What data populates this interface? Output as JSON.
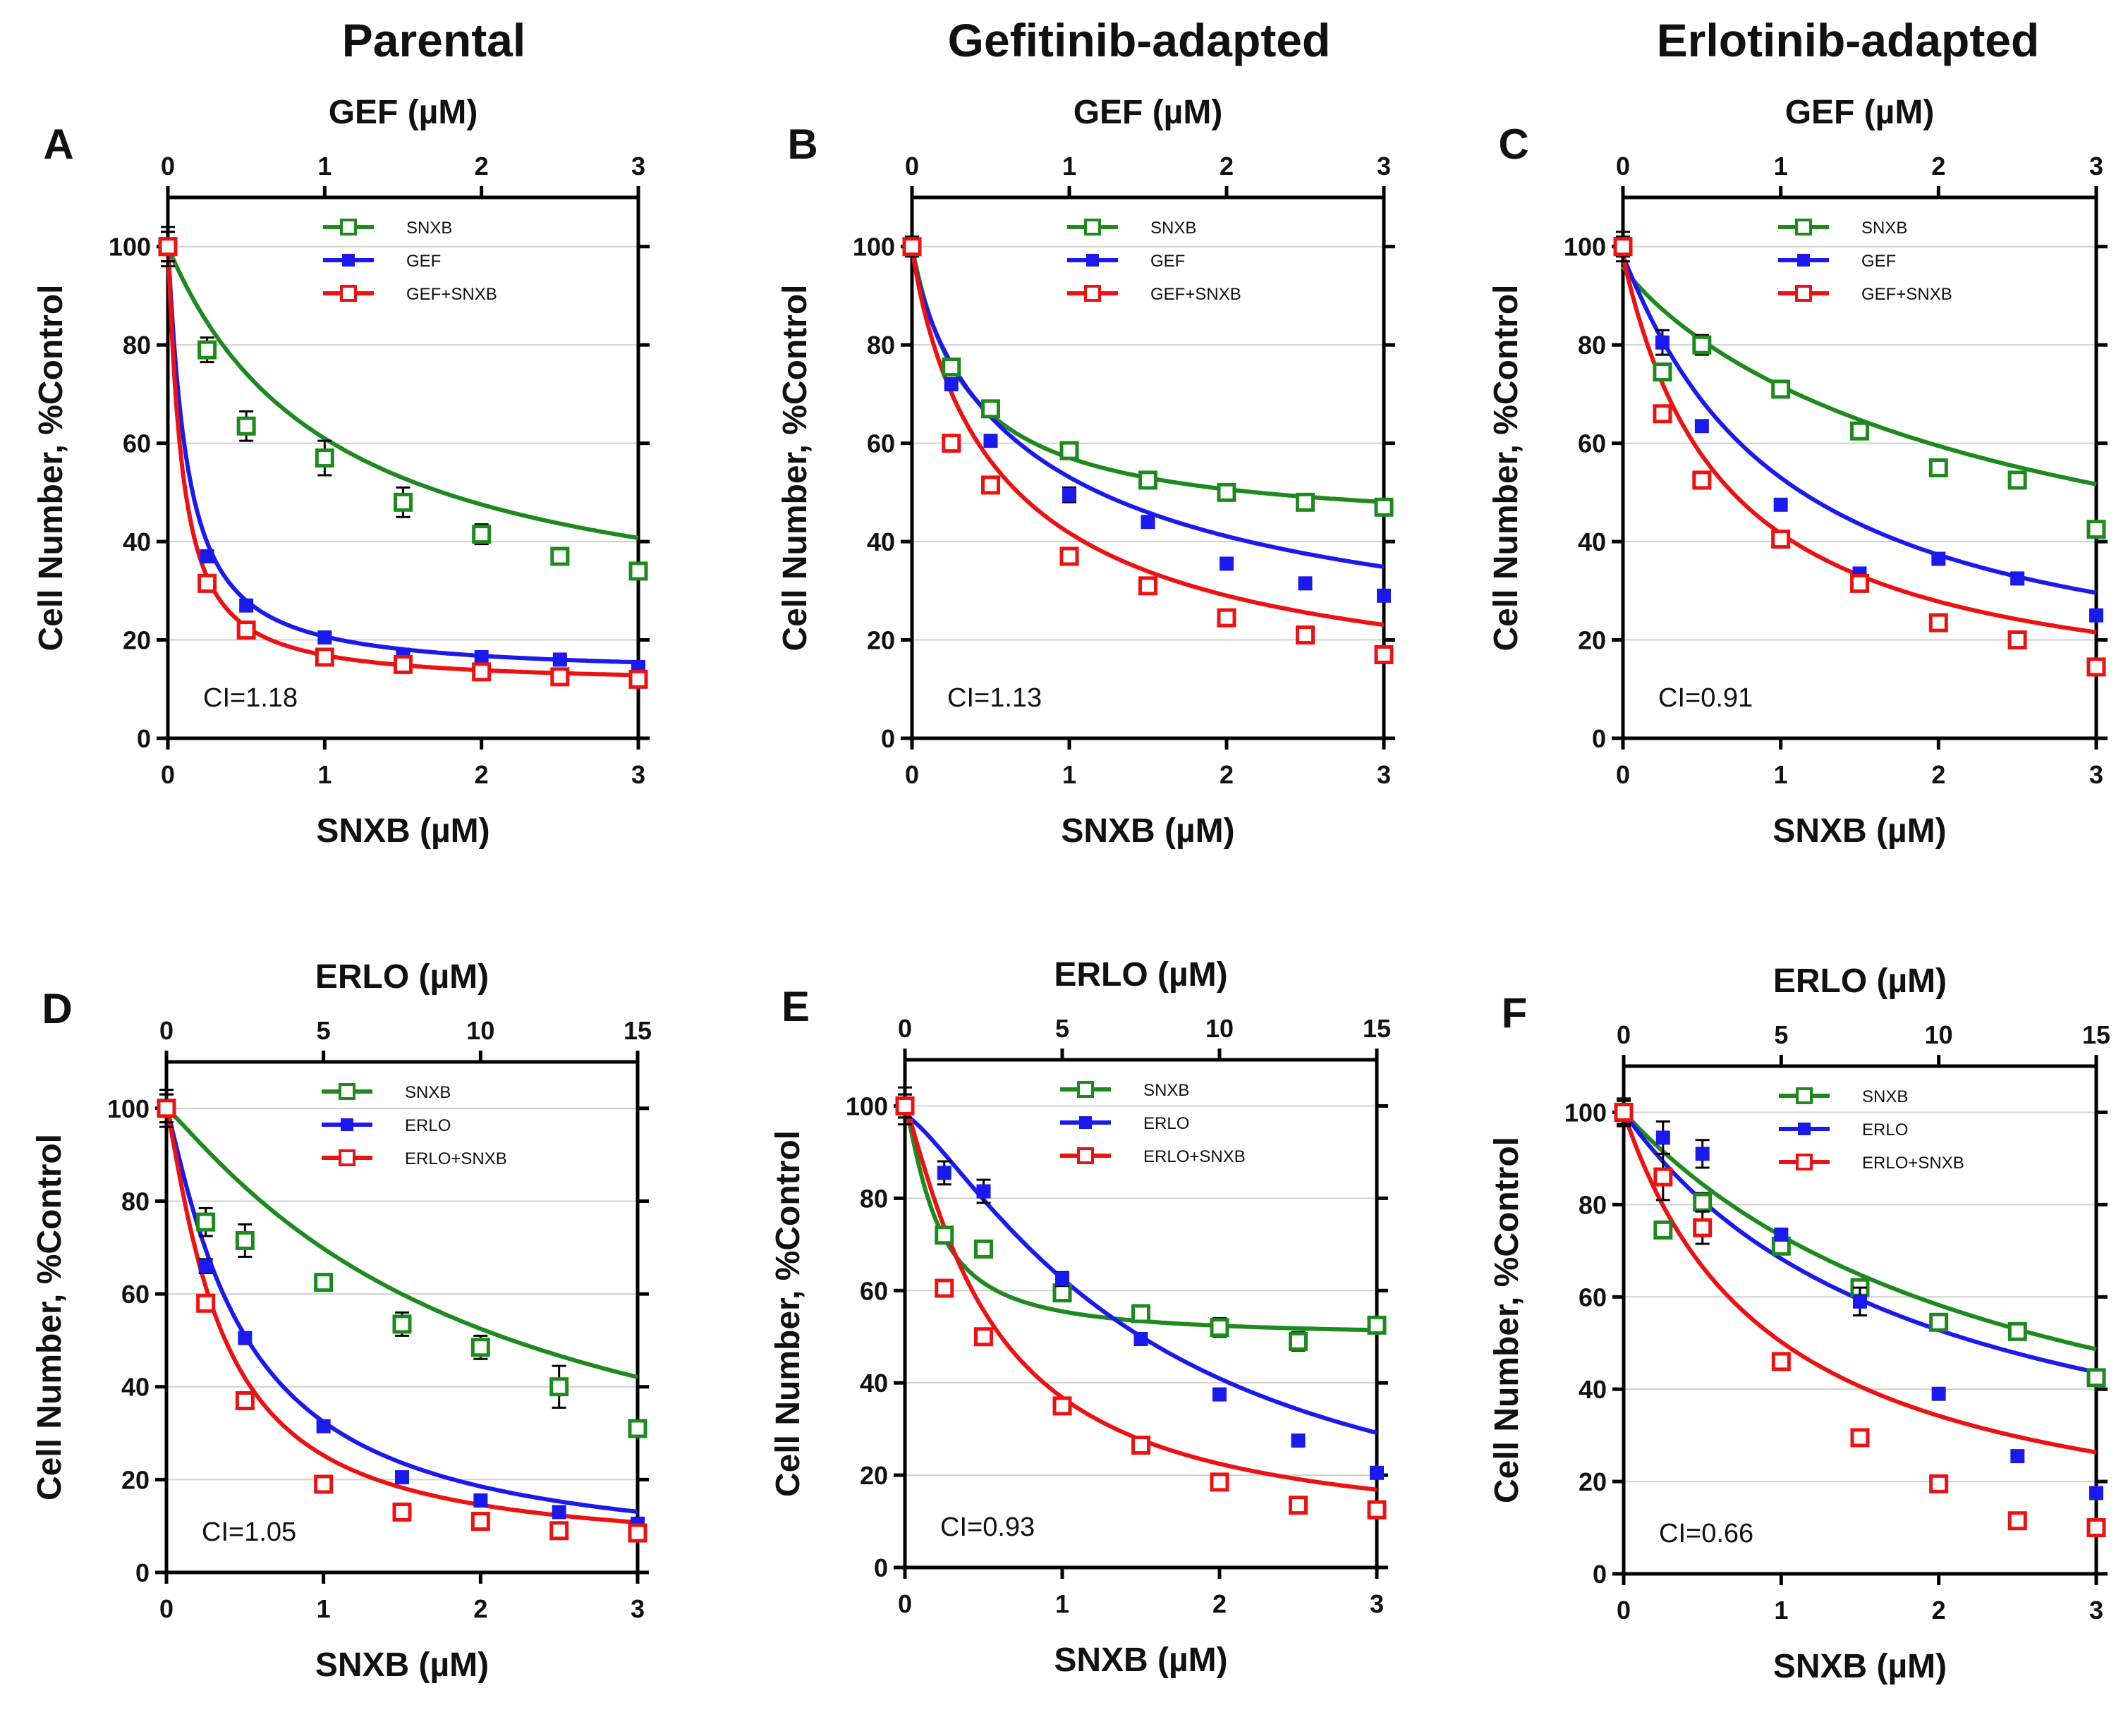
{
  "column_titles": [
    "Parental",
    "Gefitinib-adapted",
    "Erlotinib-adapted"
  ],
  "colors": {
    "SNXB": "#1e8a1e",
    "drug": "#1a1aee",
    "combo": "#ee1111",
    "grid": "#d0d0d0",
    "axis": "#000000"
  },
  "chart_data": [
    {
      "type": "scatter",
      "panel": "A",
      "ci": "CI=1.18",
      "xlabel": "SNXB (µM)",
      "ylabel": "Cell Number, %Control",
      "top_xlabel": "GEF (µM)",
      "xlim": [
        0,
        3
      ],
      "ylim": [
        0,
        110
      ],
      "top_xlim": [
        0,
        3
      ],
      "x_ticks": [
        0,
        1,
        2,
        3
      ],
      "y_ticks": [
        0,
        20,
        40,
        60,
        80,
        100
      ],
      "top_ticks": [
        0,
        1,
        2,
        3
      ],
      "series": [
        {
          "name": "SNXB",
          "x": [
            0,
            0.25,
            0.5,
            1,
            1.5,
            2,
            2.5,
            3
          ],
          "values": [
            100,
            79,
            63.5,
            57,
            48,
            41.5,
            37,
            34
          ],
          "err": [
            3,
            2.5,
            3,
            3.5,
            3,
            2,
            0,
            0
          ],
          "fit": {
            "top": 100,
            "bottom": 20,
            "ic50": 1.05,
            "hill": 1.0
          }
        },
        {
          "name": "GEF",
          "x": [
            0,
            0.25,
            0.5,
            1,
            1.5,
            2,
            2.5,
            3
          ],
          "values": [
            100,
            37,
            27,
            20.5,
            17,
            16.5,
            16,
            14.5
          ],
          "err": [
            4,
            0,
            0,
            0,
            0,
            0,
            0,
            0
          ],
          "fit": {
            "top": 100,
            "bottom": 13,
            "ic50": 0.12,
            "hill": 1.1
          }
        },
        {
          "name": "GEF+SNXB",
          "x": [
            0,
            0.25,
            0.5,
            1,
            1.5,
            2,
            2.5,
            3
          ],
          "values": [
            100,
            31.5,
            22,
            16.5,
            15,
            13.5,
            12.5,
            12
          ],
          "err": [
            3,
            0,
            0,
            0,
            0,
            0,
            0,
            0
          ],
          "fit": {
            "top": 100,
            "bottom": 11,
            "ic50": 0.09,
            "hill": 1.1
          }
        }
      ]
    },
    {
      "type": "scatter",
      "panel": "B",
      "ci": "CI=1.13",
      "xlabel": "SNXB (µM)",
      "ylabel": "Cell Number, %Control",
      "top_xlabel": "GEF (µM)",
      "xlim": [
        0,
        3
      ],
      "ylim": [
        0,
        110
      ],
      "top_xlim": [
        0,
        3
      ],
      "x_ticks": [
        0,
        1,
        2,
        3
      ],
      "y_ticks": [
        0,
        20,
        40,
        60,
        80,
        100
      ],
      "top_ticks": [
        0,
        1,
        2,
        3
      ],
      "series": [
        {
          "name": "SNXB",
          "x": [
            0,
            0.25,
            0.5,
            1,
            1.5,
            2,
            2.5,
            3
          ],
          "values": [
            100,
            75.5,
            67,
            58.5,
            52.5,
            50,
            48,
            47
          ],
          "err": [
            2,
            0,
            0,
            0,
            0,
            0,
            0,
            0
          ],
          "fit": {
            "top": 100,
            "bottom": 42,
            "ic50": 0.35,
            "hill": 1.0
          }
        },
        {
          "name": "GEF",
          "x": [
            0,
            0.25,
            0.5,
            1,
            1.5,
            2,
            2.5,
            3
          ],
          "values": [
            100,
            72,
            60.5,
            49.5,
            44,
            35.5,
            31.5,
            29
          ],
          "err": [
            2,
            0,
            0,
            1.5,
            0,
            0,
            0,
            0
          ],
          "fit": {
            "top": 100,
            "bottom": 10,
            "ic50": 0.9,
            "hill": 0.8
          }
        },
        {
          "name": "GEF+SNXB",
          "x": [
            0,
            0.25,
            0.5,
            1,
            1.5,
            2,
            2.5,
            3
          ],
          "values": [
            100,
            60,
            51.5,
            37,
            31,
            24.5,
            21,
            17
          ],
          "err": [
            2,
            0,
            0,
            0,
            0,
            0,
            0,
            0
          ],
          "fit": {
            "top": 100,
            "bottom": 5,
            "ic50": 0.6,
            "hill": 0.9
          }
        }
      ]
    },
    {
      "type": "scatter",
      "panel": "C",
      "ci": "CI=0.91",
      "xlabel": "SNXB (µM)",
      "ylabel": "Cell Number, %Control",
      "top_xlabel": "GEF (µM)",
      "xlim": [
        0,
        3
      ],
      "ylim": [
        0,
        110
      ],
      "top_xlim": [
        0,
        3
      ],
      "x_ticks": [
        0,
        1,
        2,
        3
      ],
      "y_ticks": [
        0,
        20,
        40,
        60,
        80,
        100
      ],
      "top_ticks": [
        0,
        1,
        2,
        3
      ],
      "series": [
        {
          "name": "SNXB",
          "x": [
            0,
            0.25,
            0.5,
            1,
            1.5,
            2,
            2.5,
            3
          ],
          "values": [
            100,
            74.5,
            80,
            71,
            62.5,
            55,
            52.5,
            42.5
          ],
          "err": [
            3,
            0,
            2,
            0,
            0,
            0,
            0,
            0
          ],
          "fit": {
            "top": 96,
            "bottom": 10,
            "ic50": 2.8,
            "hill": 0.9
          }
        },
        {
          "name": "GEF",
          "x": [
            0,
            0.25,
            0.5,
            1,
            1.5,
            2,
            2.5,
            3
          ],
          "values": [
            100,
            80.5,
            63.5,
            47.5,
            33.5,
            36.5,
            32.5,
            25
          ],
          "err": [
            2,
            2.5,
            0,
            0,
            0,
            0,
            0,
            0
          ],
          "fit": {
            "top": 98,
            "bottom": 8,
            "ic50": 1.0,
            "hill": 1.05
          }
        },
        {
          "name": "GEF+SNXB",
          "x": [
            0,
            0.25,
            0.5,
            1,
            1.5,
            2,
            2.5,
            3
          ],
          "values": [
            100,
            66,
            52.5,
            40.5,
            31.5,
            23.5,
            20,
            14.5
          ],
          "err": [
            2,
            0,
            0,
            0,
            0,
            0,
            0,
            0
          ],
          "fit": {
            "top": 98,
            "bottom": 5,
            "ic50": 0.65,
            "hill": 1.0
          }
        }
      ]
    },
    {
      "type": "scatter",
      "panel": "D",
      "ci": "CI=1.05",
      "xlabel": "SNXB (µM)",
      "ylabel": "Cell Number, %Control",
      "top_xlabel": "ERLO (µM)",
      "xlim": [
        0,
        3
      ],
      "ylim": [
        0,
        110
      ],
      "top_xlim": [
        0,
        15
      ],
      "x_ticks": [
        0,
        1,
        2,
        3
      ],
      "y_ticks": [
        0,
        20,
        40,
        60,
        80,
        100
      ],
      "top_ticks": [
        0,
        5,
        10,
        15
      ],
      "series": [
        {
          "name": "SNXB",
          "x": [
            0,
            0.25,
            0.5,
            1,
            1.5,
            2,
            2.5,
            3
          ],
          "values": [
            100,
            75.5,
            71.5,
            62.5,
            53.5,
            48.5,
            40,
            31
          ],
          "err": [
            3,
            3,
            3.5,
            0,
            2.5,
            2.5,
            4.5,
            0
          ],
          "fit": {
            "top": 100,
            "bottom": 5,
            "ic50": 2.0,
            "hill": 1.1
          }
        },
        {
          "name": "ERLO",
          "x": [
            0,
            0.25,
            0.5,
            1,
            1.5,
            2,
            2.5,
            3
          ],
          "values": [
            100,
            66,
            50.5,
            31.5,
            20.5,
            15.5,
            13,
            10.5
          ],
          "err": [
            4,
            1.5,
            0,
            0,
            0,
            0,
            0,
            0
          ],
          "fit": {
            "top": 100,
            "bottom": 2,
            "ic50": 0.5,
            "hill": 1.15
          }
        },
        {
          "name": "ERLO+SNXB",
          "x": [
            0,
            0.25,
            0.5,
            1,
            1.5,
            2,
            2.5,
            3
          ],
          "values": [
            100,
            58,
            37,
            19,
            13,
            11,
            9,
            8.5
          ],
          "err": [
            3,
            0,
            0,
            0,
            0,
            0,
            0,
            0
          ],
          "fit": {
            "top": 100,
            "bottom": 4,
            "ic50": 0.35,
            "hill": 1.2
          }
        }
      ]
    },
    {
      "type": "scatter",
      "panel": "E",
      "ci": "CI=0.93",
      "xlabel": "SNXB (µM)",
      "ylabel": "Cell Number, %Control",
      "top_xlabel": "ERLO (µM)",
      "xlim": [
        0,
        3
      ],
      "ylim": [
        0,
        110
      ],
      "top_xlim": [
        0,
        15
      ],
      "x_ticks": [
        0,
        1,
        2,
        3
      ],
      "y_ticks": [
        0,
        20,
        40,
        60,
        80,
        100
      ],
      "top_ticks": [
        0,
        5,
        10,
        15
      ],
      "series": [
        {
          "name": "SNXB",
          "x": [
            0,
            0.25,
            0.5,
            1,
            1.5,
            2,
            2.5,
            3
          ],
          "values": [
            100,
            72,
            69,
            59.5,
            55,
            52,
            49,
            52.5
          ],
          "err": [
            2.5,
            0,
            1.5,
            0,
            1.5,
            2,
            2,
            0
          ],
          "fit": {
            "top": 100,
            "bottom": 50,
            "ic50": 0.2,
            "hill": 1.3
          }
        },
        {
          "name": "ERLO",
          "x": [
            0,
            0.25,
            0.5,
            1,
            1.5,
            2,
            2.5,
            3
          ],
          "values": [
            100,
            85.5,
            81.5,
            62.5,
            49.5,
            37.5,
            27.5,
            20.5
          ],
          "err": [
            4,
            2.5,
            2.5,
            1.5,
            0,
            0,
            0,
            0
          ],
          "fit": {
            "top": 98,
            "bottom": 0,
            "ic50": 1.55,
            "hill": 1.3
          }
        },
        {
          "name": "ERLO+SNXB",
          "x": [
            0,
            0.25,
            0.5,
            1,
            1.5,
            2,
            2.5,
            3
          ],
          "values": [
            100,
            60.5,
            50,
            35,
            26.5,
            18.5,
            13.5,
            12.5
          ],
          "err": [
            2.5,
            1.5,
            0,
            0,
            0,
            0,
            0,
            0
          ],
          "fit": {
            "top": 100,
            "bottom": 6,
            "ic50": 0.55,
            "hill": 1.2
          }
        }
      ]
    },
    {
      "type": "scatter",
      "panel": "F",
      "ci": "CI=0.66",
      "xlabel": "SNXB (µM)",
      "ylabel": "Cell Number, %Control",
      "top_xlabel": "ERLO (µM)",
      "xlim": [
        0,
        3
      ],
      "ylim": [
        0,
        110
      ],
      "top_xlim": [
        0,
        15
      ],
      "x_ticks": [
        0,
        1,
        2,
        3
      ],
      "y_ticks": [
        0,
        20,
        40,
        60,
        80,
        100
      ],
      "top_ticks": [
        0,
        5,
        10,
        15
      ],
      "series": [
        {
          "name": "SNXB",
          "x": [
            0,
            0.25,
            0.5,
            1,
            1.5,
            2,
            2.5,
            3
          ],
          "values": [
            100,
            74.5,
            80.5,
            71,
            62,
            54.5,
            52.5,
            42.5
          ],
          "err": [
            2.5,
            0,
            2,
            1.5,
            0,
            0,
            0,
            0
          ],
          "fit": {
            "top": 100,
            "bottom": 5,
            "ic50": 2.55,
            "hill": 1.0
          }
        },
        {
          "name": "ERLO",
          "x": [
            0,
            0.25,
            0.5,
            1,
            1.5,
            2,
            2.5,
            3
          ],
          "values": [
            100,
            94.5,
            91,
            73.5,
            59,
            39,
            25.5,
            17.5
          ],
          "err": [
            3,
            3.5,
            3,
            0,
            3,
            0,
            0,
            0
          ],
          "fit": {
            "top": 100,
            "bottom": 8,
            "ic50": 1.9,
            "hill": 1.0
          }
        },
        {
          "name": "ERLO+SNXB",
          "x": [
            0,
            0.25,
            0.5,
            1,
            1.5,
            2,
            2.5,
            3
          ],
          "values": [
            100,
            86,
            75,
            46,
            29.5,
            19.5,
            11.5,
            10
          ],
          "err": [
            2.5,
            5,
            3.5,
            0,
            0,
            0,
            0,
            0
          ],
          "fit": {
            "top": 100,
            "bottom": 3,
            "ic50": 0.95,
            "hill": 1.0
          }
        }
      ]
    }
  ]
}
